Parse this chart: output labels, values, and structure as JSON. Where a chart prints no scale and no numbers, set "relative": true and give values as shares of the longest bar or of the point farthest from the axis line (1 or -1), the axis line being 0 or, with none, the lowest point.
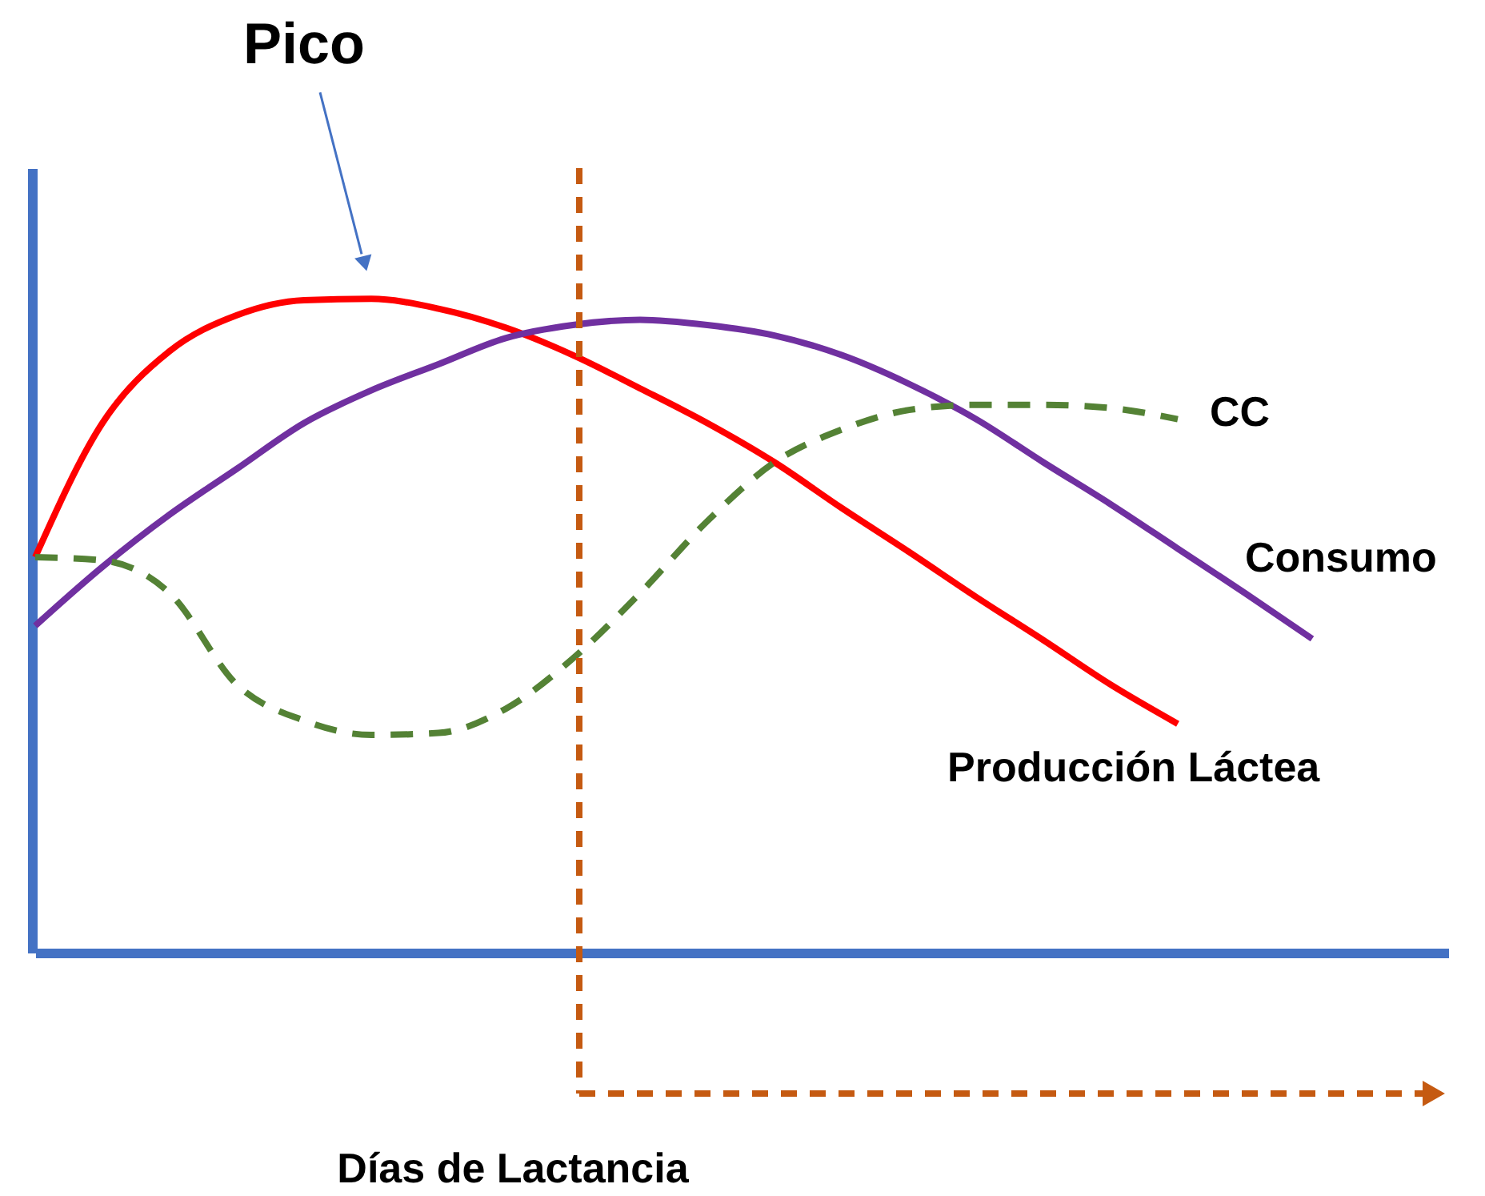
{
  "chart_data": {
    "type": "line",
    "relative": true,
    "xlabel": "Días de Lactancia",
    "categories": [
      null,
      null,
      null,
      null,
      null,
      null,
      null,
      null,
      null,
      null,
      null,
      null,
      null,
      null,
      null,
      null,
      null,
      null,
      null,
      null
    ],
    "series": [
      {
        "name": "Producción Láctea",
        "color": "#ff0000",
        "line_style": "solid",
        "values": [
          0.605,
          0.81,
          0.92,
          0.975,
          0.998,
          1,
          0.985,
          0.956,
          0.914,
          0.863,
          0.81,
          0.75,
          0.68,
          0.613,
          0.544,
          0.478,
          0.41,
          0.35,
          null,
          null
        ]
      },
      {
        "name": "Consumo",
        "color": "#7030a0",
        "line_style": "solid",
        "values": [
          0.5,
          0.59,
          0.67,
          0.74,
          0.81,
          0.86,
          0.9,
          0.94,
          0.96,
          0.968,
          0.96,
          0.944,
          0.914,
          0.87,
          0.816,
          0.75,
          0.686,
          0.618,
          0.55,
          0.48
        ]
      },
      {
        "name": "CC",
        "color": "#548235",
        "line_style": "dashed",
        "values": [
          0.605,
          0.6,
          0.55,
          0.41,
          0.355,
          0.333,
          0.336,
          0.373,
          0.45,
          0.55,
          0.66,
          0.75,
          0.8,
          0.83,
          0.838,
          0.838,
          0.833,
          0.816,
          null,
          null
        ]
      }
    ],
    "annotations": [
      "Pico"
    ]
  }
}
